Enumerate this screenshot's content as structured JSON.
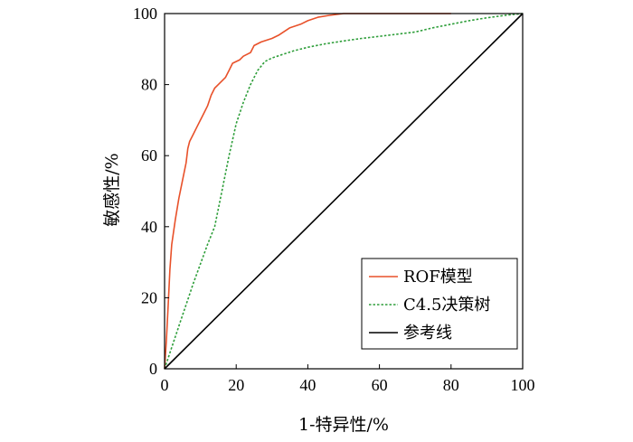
{
  "chart_data": {
    "type": "line",
    "title": "",
    "xlabel": "1-特异性/%",
    "ylabel": "敏感性/%",
    "xlim": [
      0,
      100
    ],
    "ylim": [
      0,
      100
    ],
    "x_ticks": [
      "0",
      "20",
      "40",
      "60",
      "80",
      "100"
    ],
    "y_ticks": [
      "0",
      "20",
      "40",
      "60",
      "80",
      "100"
    ],
    "grid": false,
    "legend_position": "bottom-right",
    "series": [
      {
        "name": "ROF模型",
        "color": "#e8512a",
        "style": "solid",
        "points": [
          [
            0,
            0
          ],
          [
            0.5,
            8
          ],
          [
            1,
            18
          ],
          [
            1.5,
            28
          ],
          [
            2,
            35
          ],
          [
            3,
            42
          ],
          [
            4,
            48
          ],
          [
            5,
            53
          ],
          [
            6,
            58
          ],
          [
            6.5,
            62
          ],
          [
            7,
            64
          ],
          [
            8,
            66
          ],
          [
            9,
            68
          ],
          [
            10,
            70
          ],
          [
            11,
            72
          ],
          [
            12,
            74
          ],
          [
            13,
            77
          ],
          [
            14,
            79
          ],
          [
            15,
            80
          ],
          [
            17,
            82
          ],
          [
            18,
            84
          ],
          [
            19,
            86
          ],
          [
            21,
            87
          ],
          [
            22,
            88
          ],
          [
            24,
            89
          ],
          [
            25,
            91
          ],
          [
            27,
            92
          ],
          [
            30,
            93
          ],
          [
            32,
            94
          ],
          [
            35,
            96
          ],
          [
            38,
            97
          ],
          [
            40,
            98
          ],
          [
            43,
            99
          ],
          [
            46,
            99.5
          ],
          [
            50,
            100
          ],
          [
            60,
            100
          ],
          [
            70,
            100
          ],
          [
            80,
            100
          ]
        ]
      },
      {
        "name": "C4.5决策树",
        "color": "#2e9e3a",
        "style": "dashed",
        "points": [
          [
            0,
            0
          ],
          [
            4,
            12
          ],
          [
            8,
            24
          ],
          [
            12,
            35
          ],
          [
            14,
            40
          ],
          [
            16,
            50
          ],
          [
            18,
            60
          ],
          [
            20,
            69
          ],
          [
            22,
            75
          ],
          [
            24,
            80
          ],
          [
            26,
            84
          ],
          [
            28,
            86.5
          ],
          [
            30,
            87.5
          ],
          [
            33,
            88.5
          ],
          [
            36,
            89.5
          ],
          [
            40,
            90.5
          ],
          [
            45,
            91.5
          ],
          [
            50,
            92.3
          ],
          [
            55,
            93
          ],
          [
            60,
            93.6
          ],
          [
            65,
            94.2
          ],
          [
            70,
            94.8
          ],
          [
            75,
            96
          ],
          [
            80,
            97
          ],
          [
            85,
            98
          ],
          [
            90,
            98.8
          ],
          [
            95,
            99.5
          ],
          [
            100,
            100
          ]
        ]
      },
      {
        "name": "参考线",
        "color": "#000000",
        "style": "solid",
        "points": [
          [
            0,
            0
          ],
          [
            100,
            100
          ]
        ]
      }
    ]
  }
}
